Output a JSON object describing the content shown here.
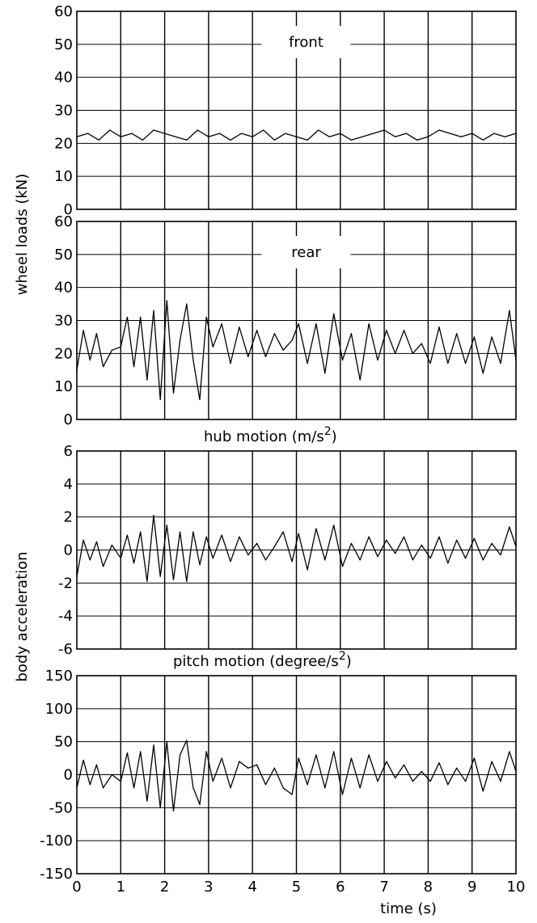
{
  "chart_data": [
    {
      "type": "line",
      "panel": "front",
      "annotation": "front",
      "x_range": [
        0,
        10
      ],
      "ylim": [
        0,
        60
      ],
      "yticks": [
        "0",
        "10",
        "20",
        "30",
        "40",
        "50",
        "60"
      ],
      "grid": true,
      "series": [
        {
          "x": [
            0,
            0.25,
            0.5,
            0.75,
            1,
            1.25,
            1.5,
            1.75,
            2,
            2.25,
            2.5,
            2.75,
            3,
            3.25,
            3.5,
            3.75,
            4,
            4.25,
            4.5,
            4.75,
            5,
            5.25,
            5.5,
            5.75,
            6,
            6.25,
            6.5,
            6.75,
            7,
            7.25,
            7.5,
            7.75,
            8,
            8.25,
            8.5,
            8.75,
            9,
            9.25,
            9.5,
            9.75,
            10
          ],
          "y": [
            22,
            23,
            21,
            24,
            22,
            23,
            21,
            24,
            23,
            22,
            21,
            24,
            22,
            23,
            21,
            23,
            22,
            24,
            21,
            23,
            22,
            21,
            24,
            22,
            23,
            21,
            22,
            23,
            24,
            22,
            23,
            21,
            22,
            24,
            23,
            22,
            23,
            21,
            23,
            22,
            23
          ]
        }
      ]
    },
    {
      "type": "line",
      "panel": "rear",
      "annotation": "rear",
      "x_range": [
        0,
        10
      ],
      "ylim": [
        0,
        60
      ],
      "yticks": [
        "0",
        "10",
        "20",
        "30",
        "40",
        "50",
        "60"
      ],
      "grid": true,
      "series": [
        {
          "x": [
            0,
            0.15,
            0.3,
            0.45,
            0.6,
            0.8,
            1,
            1.15,
            1.3,
            1.45,
            1.6,
            1.75,
            1.9,
            2.05,
            2.2,
            2.35,
            2.5,
            2.65,
            2.8,
            2.95,
            3.1,
            3.3,
            3.5,
            3.7,
            3.9,
            4.1,
            4.3,
            4.5,
            4.7,
            4.9,
            5.05,
            5.25,
            5.45,
            5.65,
            5.85,
            6.05,
            6.25,
            6.45,
            6.65,
            6.85,
            7.05,
            7.25,
            7.45,
            7.65,
            7.85,
            8.05,
            8.25,
            8.45,
            8.65,
            8.85,
            9.05,
            9.25,
            9.45,
            9.65,
            9.85,
            10
          ],
          "y": [
            15,
            27,
            18,
            26,
            16,
            21,
            22,
            31,
            16,
            31,
            12,
            33,
            6,
            36,
            8,
            24,
            35,
            18,
            6,
            31,
            22,
            29,
            17,
            28,
            19,
            27,
            19,
            26,
            21,
            24,
            29,
            17,
            29,
            14,
            32,
            18,
            26,
            12,
            29,
            18,
            27,
            20,
            27,
            20,
            23,
            17,
            28,
            17,
            26,
            17,
            25,
            14,
            25,
            17,
            33,
            18
          ]
        }
      ]
    },
    {
      "type": "line",
      "panel": "hub",
      "title": "hub motion (m/s2)",
      "x_range": [
        0,
        10
      ],
      "ylim": [
        -6,
        6
      ],
      "yticks": [
        "-6",
        "-4",
        "-2",
        "0",
        "2",
        "4",
        "6"
      ],
      "grid": true,
      "series": [
        {
          "x": [
            0,
            0.15,
            0.3,
            0.45,
            0.6,
            0.8,
            1,
            1.15,
            1.3,
            1.45,
            1.6,
            1.75,
            1.9,
            2.05,
            2.2,
            2.35,
            2.5,
            2.65,
            2.8,
            2.95,
            3.1,
            3.3,
            3.5,
            3.7,
            3.9,
            4.1,
            4.3,
            4.5,
            4.7,
            4.9,
            5.05,
            5.25,
            5.45,
            5.65,
            5.85,
            6.05,
            6.25,
            6.45,
            6.65,
            6.85,
            7.05,
            7.25,
            7.45,
            7.65,
            7.85,
            8.05,
            8.25,
            8.45,
            8.65,
            8.85,
            9.05,
            9.25,
            9.45,
            9.65,
            9.85,
            10
          ],
          "y": [
            -1.6,
            0.6,
            -0.6,
            0.5,
            -1.0,
            0.3,
            -0.5,
            0.9,
            -0.8,
            1.1,
            -1.9,
            2.1,
            -1.6,
            1.5,
            -1.8,
            1.1,
            -1.9,
            1.1,
            -0.9,
            0.8,
            -0.5,
            0.9,
            -0.7,
            0.8,
            -0.3,
            0.4,
            -0.6,
            0.2,
            1.1,
            -0.7,
            1.0,
            -1.2,
            1.3,
            -0.6,
            1.5,
            -1.0,
            0.4,
            -0.6,
            0.8,
            -0.4,
            0.6,
            -0.2,
            0.8,
            -0.6,
            0.3,
            -0.5,
            0.8,
            -0.8,
            0.6,
            -0.5,
            0.7,
            -0.6,
            0.4,
            -0.3,
            1.4,
            0.2
          ]
        }
      ]
    },
    {
      "type": "line",
      "panel": "pitch",
      "title": "pitch motion (degree/s2)",
      "xlabel": "time (s)",
      "x_range": [
        0,
        10
      ],
      "xticks": [
        "0",
        "1",
        "2",
        "3",
        "4",
        "5",
        "6",
        "7",
        "8",
        "9",
        "10"
      ],
      "ylim": [
        -150,
        150
      ],
      "yticks": [
        "-150",
        "-100",
        "-50",
        "0",
        "50",
        "100",
        "150"
      ],
      "grid": true,
      "series": [
        {
          "x": [
            0,
            0.15,
            0.3,
            0.45,
            0.6,
            0.8,
            1,
            1.15,
            1.3,
            1.45,
            1.6,
            1.75,
            1.9,
            2.05,
            2.2,
            2.35,
            2.5,
            2.65,
            2.8,
            2.95,
            3.1,
            3.3,
            3.5,
            3.7,
            3.9,
            4.1,
            4.3,
            4.5,
            4.7,
            4.9,
            5.05,
            5.25,
            5.45,
            5.65,
            5.85,
            6.05,
            6.25,
            6.45,
            6.65,
            6.85,
            7.05,
            7.25,
            7.45,
            7.65,
            7.85,
            8.05,
            8.25,
            8.45,
            8.65,
            8.85,
            9.05,
            9.25,
            9.45,
            9.65,
            9.85,
            10
          ],
          "y": [
            -20,
            22,
            -15,
            15,
            -20,
            0,
            -10,
            33,
            -20,
            35,
            -40,
            45,
            -50,
            50,
            -55,
            30,
            52,
            -20,
            -45,
            35,
            -10,
            25,
            -20,
            20,
            10,
            15,
            -15,
            10,
            -20,
            -30,
            25,
            -15,
            30,
            -20,
            35,
            -30,
            25,
            -20,
            30,
            -10,
            20,
            -5,
            15,
            -10,
            5,
            -10,
            18,
            -15,
            10,
            -10,
            25,
            -25,
            20,
            -10,
            35,
            5
          ]
        }
      ]
    }
  ],
  "labels": {
    "y_shared_top": "wheel loads (kN)",
    "y_shared_bottom": "body acceleration",
    "panel_front": "front",
    "panel_rear": "rear",
    "hub_title": "hub motion (m/s2)",
    "pitch_title": "pitch motion (degree/s2)",
    "x_axis": "time (s)"
  }
}
